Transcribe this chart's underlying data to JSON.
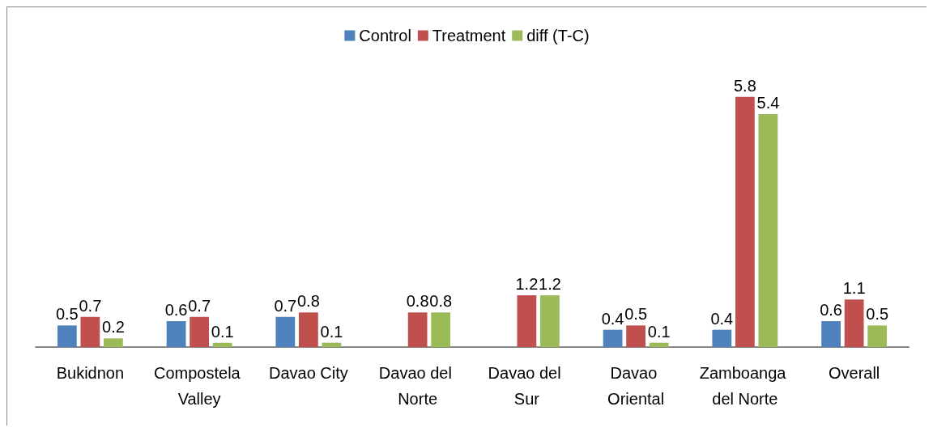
{
  "chart_data": {
    "type": "bar",
    "categories": [
      "Bukidnon",
      "Compostela Valley",
      "Davao City",
      "Davao del Norte",
      "Davao del Sur",
      "Davao Oriental",
      "Zamboanga del Norte",
      "Overall"
    ],
    "series": [
      {
        "name": "Control",
        "color": "#4f81bd",
        "values": [
          0.5,
          0.6,
          0.7,
          null,
          null,
          0.4,
          0.4,
          0.6
        ]
      },
      {
        "name": "Treatment",
        "color": "#c0504d",
        "values": [
          0.7,
          0.7,
          0.8,
          0.8,
          1.2,
          0.5,
          5.8,
          1.1
        ]
      },
      {
        "name": "diff (T-C)",
        "color": "#9bbb59",
        "values": [
          0.2,
          0.1,
          0.1,
          0.8,
          1.2,
          0.1,
          5.4,
          0.5
        ]
      }
    ],
    "data_labels": true,
    "legend": "top",
    "grid": false
  }
}
